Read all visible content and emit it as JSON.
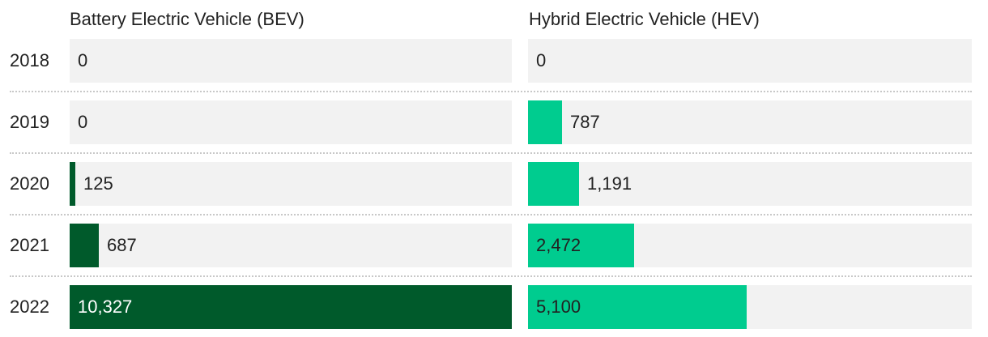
{
  "chart_data": {
    "type": "bar",
    "orientation": "horizontal",
    "layout": "small-multiples",
    "categories": [
      "2018",
      "2019",
      "2020",
      "2021",
      "2022"
    ],
    "series": [
      {
        "name": "Battery Electric Vehicle (BEV)",
        "values": [
          0,
          0,
          125,
          687,
          10327
        ],
        "labels": [
          "0",
          "0",
          "125",
          "687",
          "10,327"
        ],
        "color": "#005a2b"
      },
      {
        "name": "Hybrid Electric Vehicle (HEV)",
        "values": [
          0,
          787,
          1191,
          2472,
          5100
        ],
        "labels": [
          "0",
          "787",
          "1,191",
          "2,472",
          "5,100"
        ],
        "color": "#00cc8f"
      }
    ],
    "xlim": [
      0,
      10327
    ],
    "grid": false,
    "legend": "none",
    "track_color": "#f2f2f2"
  }
}
